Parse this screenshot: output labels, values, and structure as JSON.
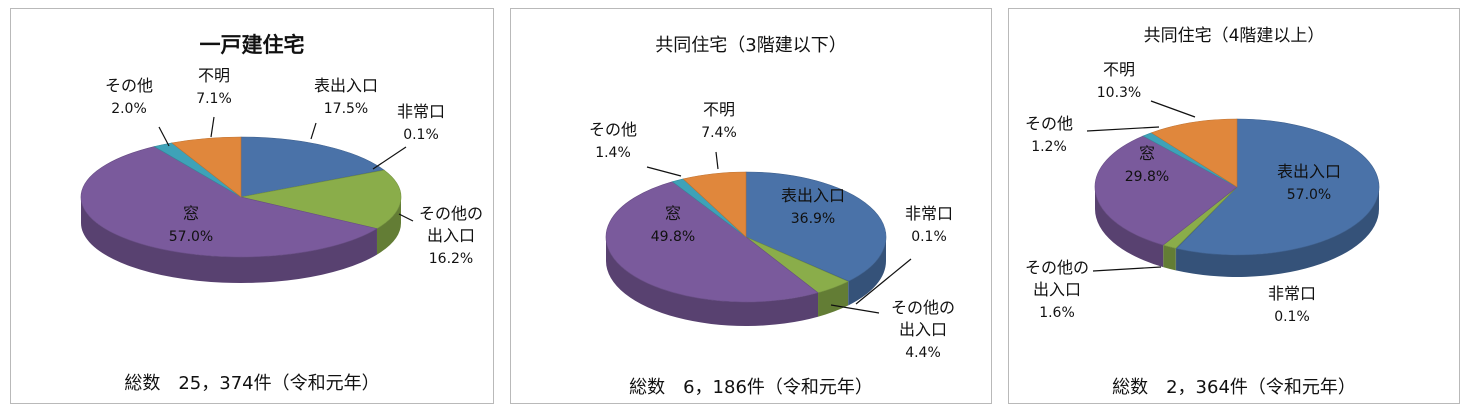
{
  "chart_data": [
    {
      "type": "pie",
      "title": "一戸建住宅",
      "total_label": "総数　25，374件（令和元年）",
      "slices": [
        {
          "name": "表出入口",
          "pct": "17.5%",
          "value": 17.5,
          "color": "#4a72a8"
        },
        {
          "name": "非常口",
          "pct": "0.1%",
          "value": 0.1,
          "color": "#4a72a8"
        },
        {
          "name": "その他の出入口",
          "pct": "16.2%",
          "value": 16.2,
          "color": "#8aad4a"
        },
        {
          "name": "窓",
          "pct": "57.0%",
          "value": 57.0,
          "color": "#7a5a9c"
        },
        {
          "name": "その他",
          "pct": "2.0%",
          "value": 2.0,
          "color": "#3ea2b8"
        },
        {
          "name": "不明",
          "pct": "7.1%",
          "value": 7.1,
          "color": "#e0873c"
        }
      ]
    },
    {
      "type": "pie",
      "title": "共同住宅（3階建以下）",
      "total_label": "総数　6，186件（令和元年）",
      "slices": [
        {
          "name": "表出入口",
          "pct": "36.9%",
          "value": 36.9,
          "color": "#4a72a8"
        },
        {
          "name": "非常口",
          "pct": "0.1%",
          "value": 0.1,
          "color": "#4a72a8"
        },
        {
          "name": "その他の出入口",
          "pct": "4.4%",
          "value": 4.4,
          "color": "#8aad4a"
        },
        {
          "name": "窓",
          "pct": "49.8%",
          "value": 49.8,
          "color": "#7a5a9c"
        },
        {
          "name": "その他",
          "pct": "1.4%",
          "value": 1.4,
          "color": "#3ea2b8"
        },
        {
          "name": "不明",
          "pct": "7.4%",
          "value": 7.4,
          "color": "#e0873c"
        }
      ]
    },
    {
      "type": "pie",
      "title": "共同住宅（4階建以上）",
      "total_label": "総数　2，364件（令和元年）",
      "slices": [
        {
          "name": "表出入口",
          "pct": "57.0%",
          "value": 57.0,
          "color": "#4a72a8"
        },
        {
          "name": "非常口",
          "pct": "0.1%",
          "value": 0.1,
          "color": "#4a72a8"
        },
        {
          "name": "その他の出入口",
          "pct": "1.6%",
          "value": 1.6,
          "color": "#8aad4a"
        },
        {
          "name": "窓",
          "pct": "29.8%",
          "value": 29.8,
          "color": "#7a5a9c"
        },
        {
          "name": "その他",
          "pct": "1.2%",
          "value": 1.2,
          "color": "#3ea2b8"
        },
        {
          "name": "不明",
          "pct": "10.3%",
          "value": 10.3,
          "color": "#e0873c"
        }
      ]
    }
  ]
}
